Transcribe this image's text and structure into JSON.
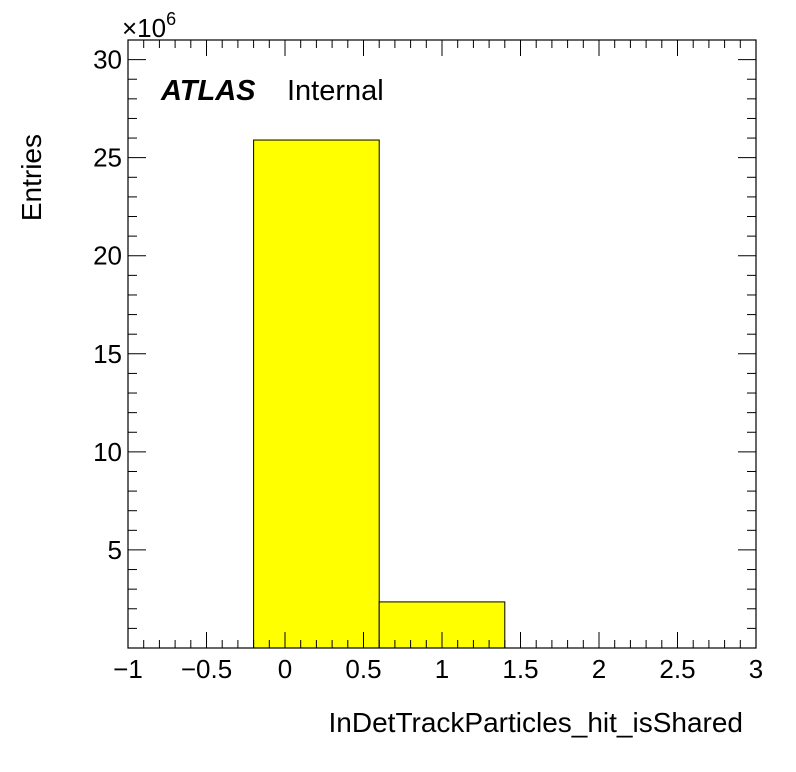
{
  "chart_data": {
    "type": "bar",
    "histogram": true,
    "bin_edges": [
      -0.2,
      0.6,
      1.4
    ],
    "values": [
      25900000,
      2350000
    ],
    "bar_color": "#ffff00",
    "xlabel": "InDetTrackParticles_hit_isShared",
    "ylabel": "Entries",
    "xlim": [
      -1,
      3
    ],
    "ylim": [
      0,
      31000000
    ],
    "x_ticks": [
      -1,
      -0.5,
      0,
      0.5,
      1,
      1.5,
      2,
      2.5,
      3
    ],
    "x_tick_labels": [
      "−1",
      "−0.5",
      "0",
      "0.5",
      "1",
      "1.5",
      "2",
      "2.5",
      "3"
    ],
    "y_ticks": [
      5,
      10,
      15,
      20,
      25,
      30
    ],
    "y_tick_labels": [
      "5",
      "10",
      "15",
      "20",
      "25",
      "30"
    ],
    "y_multiplier_base": "×10",
    "y_multiplier_exp": "6",
    "y_multiplier_value": 1000000,
    "grid": false,
    "annotations": {
      "experiment": "ATLAS",
      "status": "Internal"
    }
  }
}
